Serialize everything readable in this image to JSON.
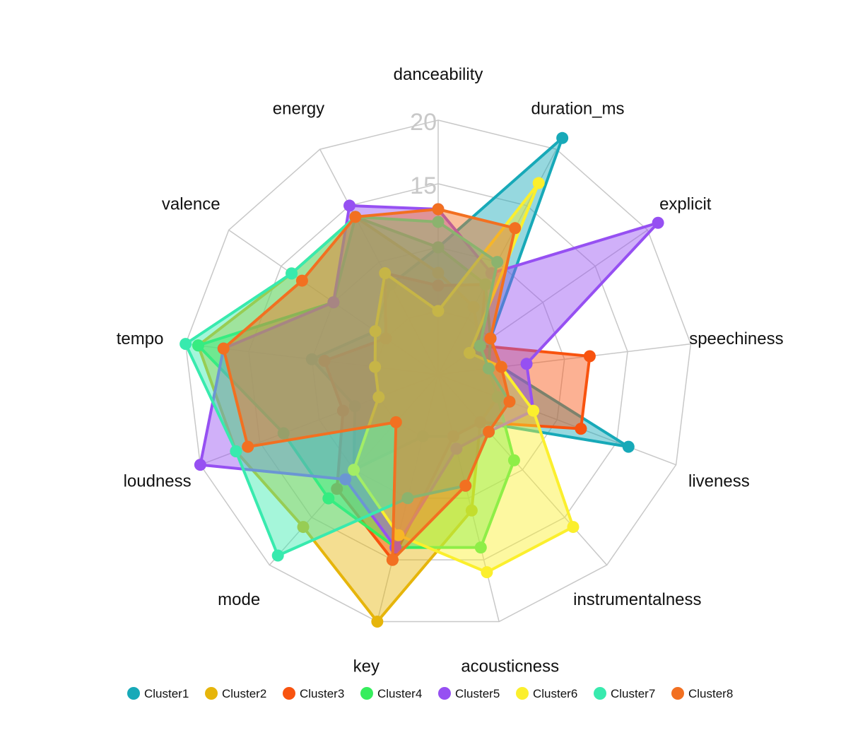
{
  "chart_data": {
    "type": "radar",
    "axes": [
      "danceability",
      "duration_ms",
      "explicit",
      "speechiness",
      "liveness",
      "instrumentalness",
      "acousticness",
      "key",
      "mode",
      "loudness",
      "tempo",
      "valence",
      "energy"
    ],
    "ticks": [
      {
        "value": 15,
        "label": "15"
      },
      {
        "value": 20,
        "label": "20"
      }
    ],
    "rmax": 20,
    "grid_rings": [
      5,
      10,
      15,
      20
    ],
    "legend_position": "bottom",
    "series": [
      {
        "name": "Cluster1",
        "color": "#17a9b8",
        "values": [
          10,
          21,
          5,
          5,
          16,
          5,
          5,
          5,
          10,
          7,
          10,
          6,
          8
        ]
      },
      {
        "name": "Cluster2",
        "color": "#e6b50b",
        "values": [
          8,
          6,
          4,
          4,
          5,
          5,
          11,
          20,
          16,
          17,
          19,
          14,
          14
        ]
      },
      {
        "name": "Cluster3",
        "color": "#f8530f",
        "values": [
          7,
          8,
          4,
          12,
          12,
          5,
          5,
          15,
          12,
          8,
          9,
          5,
          9
        ]
      },
      {
        "name": "Cluster4",
        "color": "#36ed5d",
        "values": [
          10,
          8,
          5,
          4,
          5,
          9,
          14,
          14,
          13,
          13,
          19,
          10,
          14
        ]
      },
      {
        "name": "Cluster5",
        "color": "#9650f2",
        "values": [
          13,
          9,
          21,
          7,
          8,
          6,
          6,
          14,
          11,
          20,
          17,
          10,
          15
        ]
      },
      {
        "name": "Cluster6",
        "color": "#fbef2d",
        "values": [
          5,
          17,
          3,
          5,
          8,
          16,
          16,
          13,
          10,
          5,
          5,
          6,
          9
        ]
      },
      {
        "name": "Cluster7",
        "color": "#38eaae",
        "values": [
          12,
          10,
          4,
          4,
          6,
          6,
          9,
          10,
          19,
          17,
          20,
          14,
          14
        ]
      },
      {
        "name": "Cluster8",
        "color": "#f27021",
        "values": [
          13,
          13,
          5,
          5,
          6,
          6,
          9,
          15,
          5,
          16,
          17,
          13,
          14
        ]
      }
    ]
  }
}
